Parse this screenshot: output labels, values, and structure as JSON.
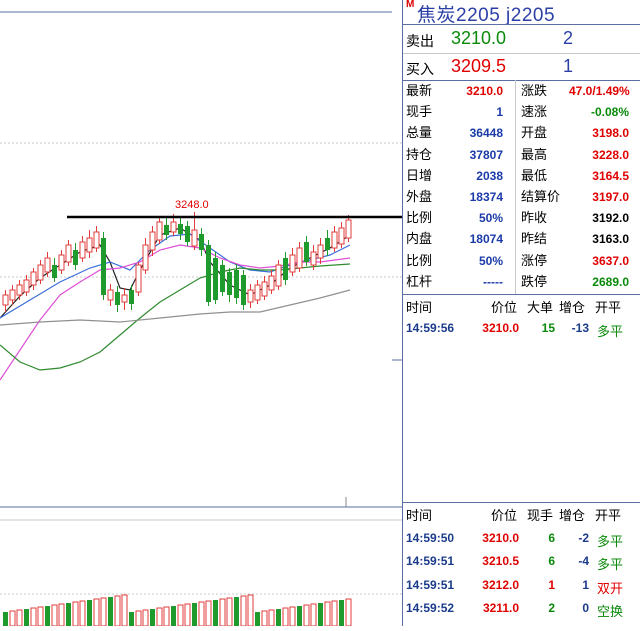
{
  "chart": {
    "peak_label": "3248.0",
    "colors": {
      "up": "#e23b3b",
      "down": "#1f9a2c",
      "ma1": "#222222",
      "ma2": "#3a6fd8",
      "ma3": "#e04fd8",
      "ma4": "#2e8b2e",
      "ma5": "#909090"
    }
  },
  "header": {
    "m_badge": "M",
    "title": "焦炭2205  j2205"
  },
  "order_book": {
    "ask_label": "卖出",
    "ask_price": "3210.0",
    "ask_volume": "2",
    "bid_label": "买入",
    "bid_price": "3209.5",
    "bid_volume": "1"
  },
  "quote": {
    "left": [
      {
        "label": "最新",
        "value": "3210.0",
        "color": "red"
      },
      {
        "label": "现手",
        "value": "1",
        "color": "blue"
      },
      {
        "label": "总量",
        "value": "36448",
        "color": "blue"
      },
      {
        "label": "持仓",
        "value": "37807",
        "color": "blue"
      },
      {
        "label": "日增",
        "value": "2038",
        "color": "blue"
      },
      {
        "label": "外盘",
        "value": "18374",
        "color": "blue"
      },
      {
        "label": "比例",
        "value": "50%",
        "color": "blue"
      },
      {
        "label": "内盘",
        "value": "18074",
        "color": "blue"
      },
      {
        "label": "比例",
        "value": "50%",
        "color": "blue"
      },
      {
        "label": "杠杆",
        "value": "-----",
        "color": "blue"
      }
    ],
    "right": [
      {
        "label": "涨跌",
        "value": "47.0/1.49%",
        "color": "red"
      },
      {
        "label": "速涨",
        "value": "-0.08%",
        "color": "green"
      },
      {
        "label": "开盘",
        "value": "3198.0",
        "color": "red"
      },
      {
        "label": "最高",
        "value": "3228.0",
        "color": "red"
      },
      {
        "label": "最低",
        "value": "3164.5",
        "color": "red"
      },
      {
        "label": "结算价",
        "value": "3197.0",
        "color": "red"
      },
      {
        "label": "昨收",
        "value": "3192.0",
        "color": "black"
      },
      {
        "label": "昨结",
        "value": "3163.0",
        "color": "black"
      },
      {
        "label": "涨停",
        "value": "3637.0",
        "color": "red"
      },
      {
        "label": "跌停",
        "value": "2689.0",
        "color": "green"
      }
    ]
  },
  "big_orders": {
    "headers": [
      "时间",
      "价位",
      "大单",
      "增仓",
      "开平"
    ],
    "rows": [
      {
        "time": "14:59:56",
        "price": "3210.0",
        "size": "15",
        "chg": "-13",
        "type": "多平"
      }
    ]
  },
  "ticks": {
    "headers": [
      "时间",
      "价位",
      "现手",
      "增仓",
      "开平"
    ],
    "rows": [
      {
        "time": "14:59:50",
        "price": "3210.0",
        "size": "6",
        "chg": "-2",
        "type": "多平"
      },
      {
        "time": "14:59:51",
        "price": "3210.5",
        "size": "6",
        "chg": "-4",
        "type": "多平"
      },
      {
        "time": "14:59:51",
        "price": "3212.0",
        "size": "1",
        "chg": "1",
        "type": "双开"
      },
      {
        "time": "14:59:52",
        "price": "3211.0",
        "size": "2",
        "chg": "0",
        "type": "空换"
      }
    ]
  }
}
